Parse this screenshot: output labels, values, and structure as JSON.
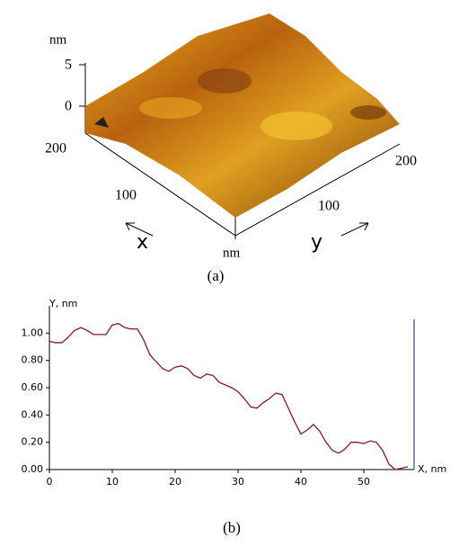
{
  "panel_a": {
    "unit_top": "nm",
    "tick_5": 5,
    "tick_0": 0,
    "x_200": 200,
    "x_100": 100,
    "x_label": "x",
    "corner_unit": "nm",
    "y_100": 100,
    "y_label": "y",
    "y_200": 200,
    "caption": "(a)"
  },
  "chart_data": {
    "type": "line",
    "y_label": "Y, nm",
    "x_label": "X, nm",
    "x": [
      0,
      1,
      2,
      3,
      4,
      5,
      6,
      7,
      8,
      9,
      10,
      11,
      12,
      13,
      14,
      15,
      16,
      17,
      18,
      19,
      20,
      21,
      22,
      23,
      24,
      25,
      26,
      27,
      28,
      29,
      30,
      31,
      32,
      33,
      34,
      35,
      36,
      37,
      38,
      39,
      40,
      41,
      42,
      43,
      44,
      45,
      46,
      47,
      48,
      49,
      50,
      51,
      52,
      53,
      54,
      55,
      56,
      57
    ],
    "series": [
      {
        "color": "#8b1a1a",
        "values": [
          0.94,
          0.93,
          0.93,
          0.97,
          1.02,
          1.04,
          1.02,
          0.99,
          0.99,
          0.99,
          1.06,
          1.07,
          1.04,
          1.03,
          1.03,
          0.95,
          0.84,
          0.79,
          0.74,
          0.72,
          0.75,
          0.76,
          0.74,
          0.69,
          0.67,
          0.7,
          0.69,
          0.64,
          0.62,
          0.6,
          0.57,
          0.52,
          0.46,
          0.45,
          0.49,
          0.52,
          0.56,
          0.55,
          0.45,
          0.35,
          0.26,
          0.29,
          0.33,
          0.28,
          0.2,
          0.14,
          0.12,
          0.15,
          0.2,
          0.2,
          0.19,
          0.21,
          0.2,
          0.14,
          0.04,
          0.0,
          0.01,
          0.02
        ]
      }
    ],
    "xlim": [
      0,
      58
    ],
    "xticks": [
      0,
      10,
      20,
      30,
      40,
      50
    ],
    "ylim": [
      0,
      1.2
    ],
    "yticks": [
      {
        "value": 0,
        "label": "0.00"
      },
      {
        "value": 0.2,
        "label": "0.20"
      },
      {
        "value": 0.4,
        "label": "0.40"
      },
      {
        "value": 0.6,
        "label": "0.60"
      },
      {
        "value": 0.8,
        "label": "0.80"
      },
      {
        "value": 1,
        "label": "1.00"
      }
    ],
    "caption": "(b)"
  }
}
